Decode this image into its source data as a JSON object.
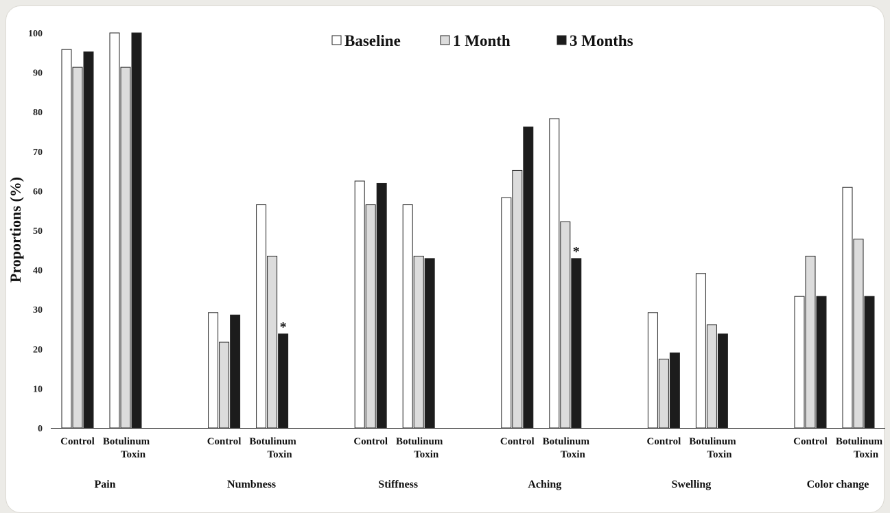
{
  "chart_data": {
    "type": "bar",
    "title": "",
    "ylabel": "Proportions (%)",
    "xlabel": "",
    "ylim": [
      0,
      100
    ],
    "yticks": [
      0,
      10,
      20,
      30,
      40,
      50,
      60,
      70,
      80,
      90,
      100
    ],
    "legend_position": "top",
    "legend": [
      {
        "name": "Baseline",
        "color": "#ffffff"
      },
      {
        "name": "1 Month",
        "color": "#dcdcdc"
      },
      {
        "name": "3 Months",
        "color": "#1c1c1c"
      }
    ],
    "groups": [
      "Control",
      "Botulinum Toxin"
    ],
    "group_labels": [
      [
        "Control"
      ],
      [
        "Botulinum",
        "Toxin"
      ]
    ],
    "categories": [
      {
        "name": "Pain",
        "values": [
          [
            95.8,
            91.3,
            95.2
          ],
          [
            100,
            91.3,
            100
          ]
        ],
        "significant": [
          false,
          false
        ]
      },
      {
        "name": "Numbness",
        "values": [
          [
            29.2,
            21.7,
            28.6
          ],
          [
            56.5,
            43.5,
            23.8
          ]
        ],
        "significant": [
          false,
          true
        ]
      },
      {
        "name": "Stiffness",
        "values": [
          [
            62.5,
            56.5,
            61.9
          ],
          [
            56.5,
            43.5,
            42.9
          ]
        ],
        "significant": [
          false,
          false
        ]
      },
      {
        "name": "Aching",
        "values": [
          [
            58.3,
            65.2,
            76.2
          ],
          [
            78.3,
            52.2,
            42.9
          ]
        ],
        "significant": [
          false,
          true
        ]
      },
      {
        "name": "Swelling",
        "values": [
          [
            29.2,
            17.4,
            19.0
          ],
          [
            39.1,
            26.1,
            23.8
          ]
        ],
        "significant": [
          false,
          false
        ]
      },
      {
        "name": "Color change",
        "values": [
          [
            33.3,
            43.5,
            33.3
          ],
          [
            60.9,
            47.8,
            33.3
          ]
        ],
        "significant": [
          false,
          false
        ]
      }
    ],
    "significance_marker": "*"
  }
}
